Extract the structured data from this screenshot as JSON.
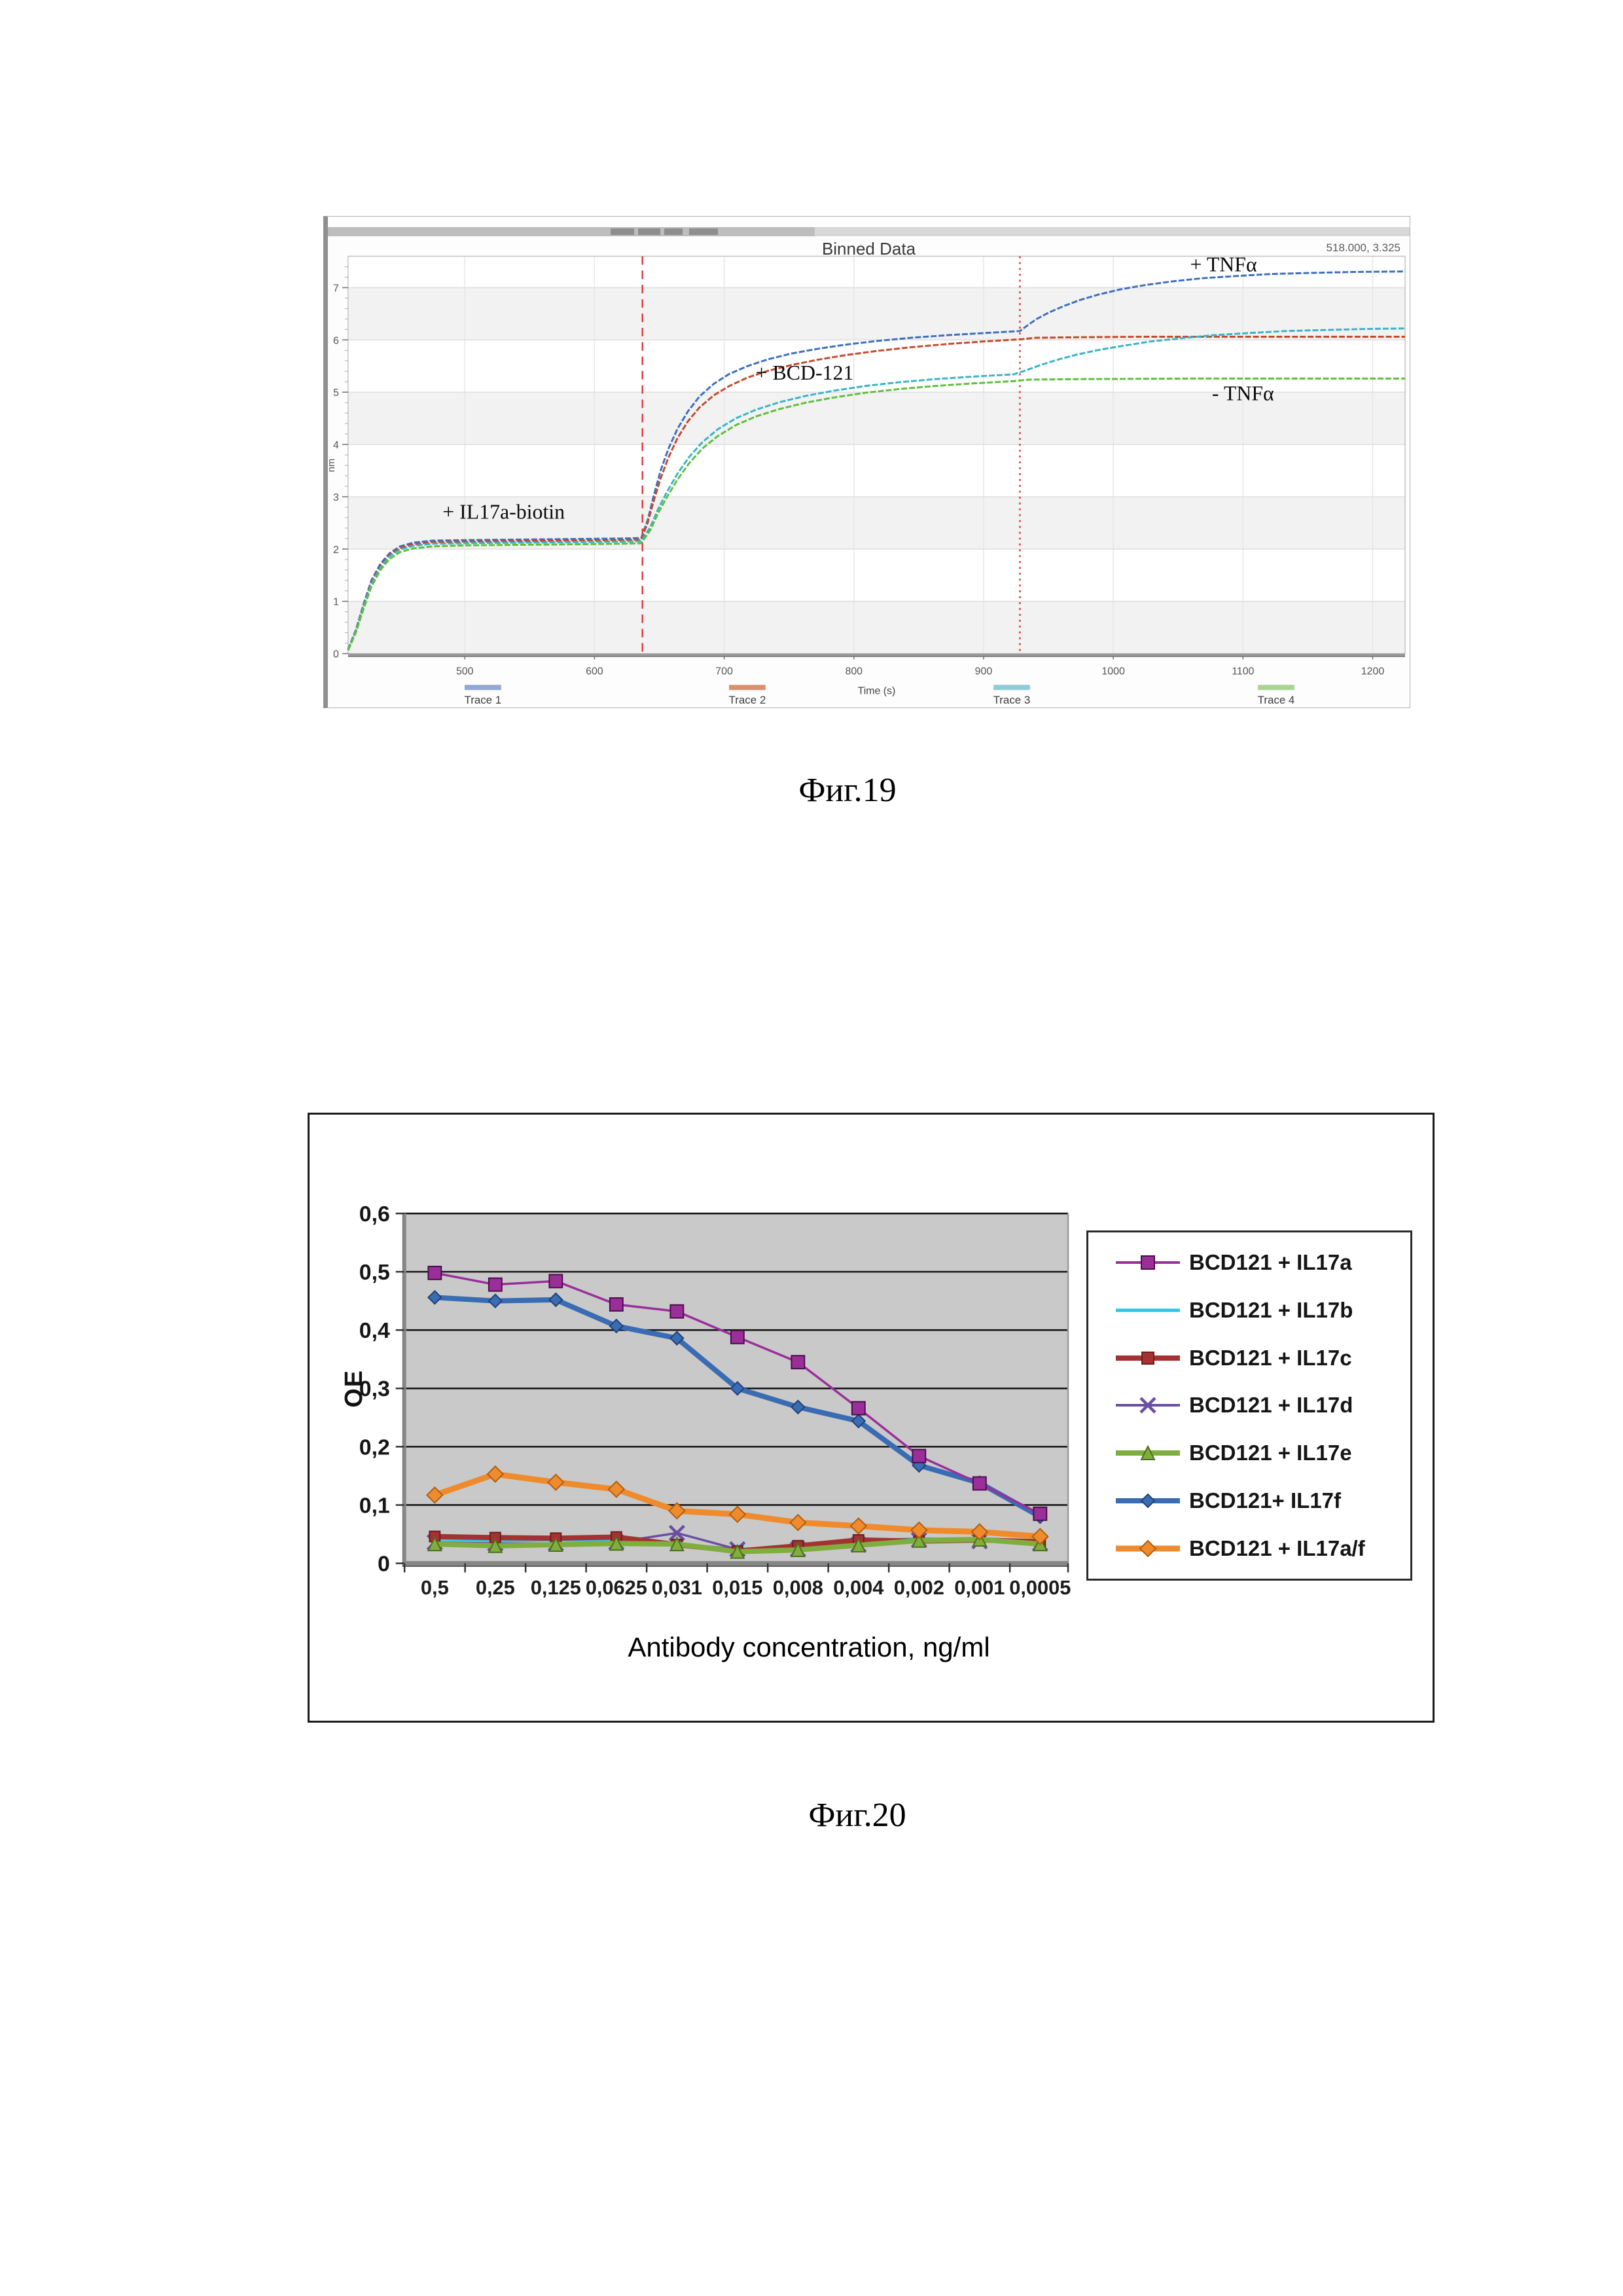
{
  "fig19": {
    "window_title": "Binned Data",
    "coords_readout": "518.000, 3.325",
    "caption": "Фиг.19"
  },
  "fig20": {
    "caption": "Фиг.20"
  },
  "chart_data": [
    {
      "id": "fig19",
      "type": "line",
      "title": "Binned Data",
      "xlabel": "Time (s)",
      "ylabel": "nm",
      "xlim": [
        410,
        1225
      ],
      "ylim": [
        0,
        7.6
      ],
      "xticks": [
        500,
        600,
        700,
        800,
        900,
        1000,
        1100,
        1200
      ],
      "yticks": [
        0,
        1,
        2,
        3,
        4,
        5,
        6,
        7
      ],
      "grid": true,
      "legend_position": "bottom",
      "phase_lines": [
        {
          "x": 637,
          "style": "dashed",
          "color": "#e03c3c"
        },
        {
          "x": 928,
          "style": "dotted",
          "color": "#e03c3c"
        }
      ],
      "annotations": [
        {
          "text": "+ IL17a-biotin",
          "x": 530,
          "y": 2.72
        },
        {
          "text": "+ BCD-121",
          "x": 762,
          "y": 5.38
        },
        {
          "text": "+ TNFα",
          "x": 1085,
          "y": 7.45
        },
        {
          "text": "- TNFα",
          "x": 1100,
          "y": 4.98
        }
      ],
      "series": [
        {
          "name": "Trace 1",
          "color": "#3f6fbe",
          "legend_color": "#92a9d4",
          "points": [
            [
              410,
              0.08
            ],
            [
              416,
              0.45
            ],
            [
              422,
              0.95
            ],
            [
              428,
              1.4
            ],
            [
              435,
              1.72
            ],
            [
              442,
              1.92
            ],
            [
              450,
              2.05
            ],
            [
              460,
              2.12
            ],
            [
              475,
              2.16
            ],
            [
              500,
              2.17
            ],
            [
              540,
              2.18
            ],
            [
              580,
              2.19
            ],
            [
              620,
              2.2
            ],
            [
              636,
              2.21
            ],
            [
              641,
              2.55
            ],
            [
              646,
              3.05
            ],
            [
              651,
              3.5
            ],
            [
              657,
              3.92
            ],
            [
              664,
              4.3
            ],
            [
              672,
              4.63
            ],
            [
              681,
              4.92
            ],
            [
              692,
              5.16
            ],
            [
              704,
              5.35
            ],
            [
              718,
              5.5
            ],
            [
              734,
              5.63
            ],
            [
              752,
              5.74
            ],
            [
              772,
              5.83
            ],
            [
              794,
              5.91
            ],
            [
              818,
              5.98
            ],
            [
              844,
              6.04
            ],
            [
              872,
              6.09
            ],
            [
              900,
              6.13
            ],
            [
              928,
              6.17
            ],
            [
              934,
              6.28
            ],
            [
              941,
              6.4
            ],
            [
              950,
              6.52
            ],
            [
              961,
              6.64
            ],
            [
              974,
              6.76
            ],
            [
              989,
              6.87
            ],
            [
              1006,
              6.97
            ],
            [
              1025,
              7.05
            ],
            [
              1046,
              7.12
            ],
            [
              1069,
              7.18
            ],
            [
              1094,
              7.22
            ],
            [
              1121,
              7.26
            ],
            [
              1150,
              7.28
            ],
            [
              1185,
              7.3
            ],
            [
              1225,
              7.31
            ]
          ]
        },
        {
          "name": "Trace 2",
          "color": "#c24b2d",
          "legend_color": "#d9926f",
          "points": [
            [
              410,
              0.07
            ],
            [
              416,
              0.43
            ],
            [
              422,
              0.92
            ],
            [
              428,
              1.36
            ],
            [
              435,
              1.68
            ],
            [
              442,
              1.89
            ],
            [
              450,
              2.02
            ],
            [
              460,
              2.09
            ],
            [
              475,
              2.13
            ],
            [
              500,
              2.14
            ],
            [
              540,
              2.15
            ],
            [
              580,
              2.16
            ],
            [
              620,
              2.17
            ],
            [
              636,
              2.18
            ],
            [
              641,
              2.5
            ],
            [
              646,
              2.95
            ],
            [
              651,
              3.35
            ],
            [
              657,
              3.75
            ],
            [
              664,
              4.12
            ],
            [
              672,
              4.44
            ],
            [
              681,
              4.71
            ],
            [
              692,
              4.94
            ],
            [
              704,
              5.12
            ],
            [
              718,
              5.28
            ],
            [
              734,
              5.41
            ],
            [
              752,
              5.52
            ],
            [
              772,
              5.62
            ],
            [
              794,
              5.71
            ],
            [
              818,
              5.79
            ],
            [
              844,
              5.86
            ],
            [
              872,
              5.92
            ],
            [
              900,
              5.97
            ],
            [
              928,
              6.01
            ],
            [
              940,
              6.04
            ],
            [
              970,
              6.05
            ],
            [
              1020,
              6.06
            ],
            [
              1120,
              6.06
            ],
            [
              1225,
              6.06
            ]
          ]
        },
        {
          "name": "Trace 3",
          "color": "#3ab4c8",
          "legend_color": "#8fccd8",
          "points": [
            [
              410,
              0.07
            ],
            [
              416,
              0.42
            ],
            [
              422,
              0.9
            ],
            [
              428,
              1.33
            ],
            [
              435,
              1.65
            ],
            [
              442,
              1.86
            ],
            [
              450,
              1.99
            ],
            [
              460,
              2.06
            ],
            [
              475,
              2.1
            ],
            [
              500,
              2.11
            ],
            [
              540,
              2.12
            ],
            [
              580,
              2.13
            ],
            [
              620,
              2.14
            ],
            [
              636,
              2.15
            ],
            [
              643,
              2.42
            ],
            [
              649,
              2.76
            ],
            [
              656,
              3.1
            ],
            [
              664,
              3.44
            ],
            [
              673,
              3.76
            ],
            [
              683,
              4.04
            ],
            [
              695,
              4.29
            ],
            [
              709,
              4.5
            ],
            [
              725,
              4.67
            ],
            [
              743,
              4.81
            ],
            [
              763,
              4.93
            ],
            [
              785,
              5.03
            ],
            [
              809,
              5.12
            ],
            [
              835,
              5.19
            ],
            [
              863,
              5.25
            ],
            [
              893,
              5.3
            ],
            [
              923,
              5.34
            ],
            [
              933,
              5.42
            ],
            [
              944,
              5.52
            ],
            [
              957,
              5.62
            ],
            [
              972,
              5.72
            ],
            [
              989,
              5.81
            ],
            [
              1008,
              5.89
            ],
            [
              1029,
              5.97
            ],
            [
              1052,
              6.03
            ],
            [
              1077,
              6.09
            ],
            [
              1104,
              6.13
            ],
            [
              1133,
              6.17
            ],
            [
              1164,
              6.19
            ],
            [
              1195,
              6.21
            ],
            [
              1225,
              6.22
            ]
          ]
        },
        {
          "name": "Trace 4",
          "color": "#5fbf3c",
          "legend_color": "#a8d494",
          "points": [
            [
              410,
              0.06
            ],
            [
              416,
              0.4
            ],
            [
              422,
              0.86
            ],
            [
              428,
              1.28
            ],
            [
              435,
              1.6
            ],
            [
              442,
              1.81
            ],
            [
              450,
              1.94
            ],
            [
              460,
              2.01
            ],
            [
              475,
              2.05
            ],
            [
              500,
              2.07
            ],
            [
              540,
              2.08
            ],
            [
              580,
              2.09
            ],
            [
              620,
              2.1
            ],
            [
              636,
              2.11
            ],
            [
              643,
              2.36
            ],
            [
              649,
              2.68
            ],
            [
              656,
              3.0
            ],
            [
              664,
              3.33
            ],
            [
              673,
              3.64
            ],
            [
              683,
              3.92
            ],
            [
              695,
              4.16
            ],
            [
              709,
              4.37
            ],
            [
              725,
              4.54
            ],
            [
              743,
              4.68
            ],
            [
              763,
              4.8
            ],
            [
              785,
              4.9
            ],
            [
              809,
              4.99
            ],
            [
              835,
              5.06
            ],
            [
              863,
              5.12
            ],
            [
              893,
              5.17
            ],
            [
              923,
              5.21
            ],
            [
              935,
              5.24
            ],
            [
              975,
              5.25
            ],
            [
              1060,
              5.26
            ],
            [
              1225,
              5.26
            ]
          ]
        }
      ]
    },
    {
      "id": "fig20",
      "type": "line",
      "title": "",
      "xlabel": "Antibody concentration, ng/ml",
      "ylabel": "OE",
      "categories": [
        "0,5",
        "0,25",
        "0,125",
        "0,0625",
        "0,031",
        "0,015",
        "0,008",
        "0,004",
        "0,002",
        "0,001",
        "0,0005"
      ],
      "ylim": [
        0,
        0.6
      ],
      "yticks": [
        0,
        0.1,
        0.2,
        0.3,
        0.4,
        0.5,
        0.6
      ],
      "ytick_labels": [
        "0",
        "0,1",
        "0,2",
        "0,3",
        "0,4",
        "0,5",
        "0,6"
      ],
      "grid": true,
      "legend_position": "right",
      "plot_bg": "#c9c9c9",
      "series": [
        {
          "name": "BCD121 + IL17a",
          "color": "#9a2f9a",
          "marker": "square",
          "marker_edge": "#4c0d4c",
          "marker_size": 20,
          "line_width": 3.5,
          "values": [
            0.498,
            0.478,
            0.484,
            0.444,
            0.432,
            0.388,
            0.345,
            0.266,
            0.184,
            0.137,
            0.085
          ]
        },
        {
          "name": "BCD121 + IL17b",
          "color": "#29c5e6",
          "marker": "dash",
          "marker_edge": "#29c5e6",
          "marker_size": 0,
          "line_width": 5,
          "values": [
            0.042,
            0.039,
            0.04,
            0.04,
            0.032,
            0.024,
            0.026,
            0.038,
            0.042,
            0.04,
            0.038
          ]
        },
        {
          "name": "BCD121 + IL17c",
          "color": "#a53232",
          "marker": "square",
          "marker_edge": "#6e1d1d",
          "marker_size": 16,
          "line_width": 8,
          "values": [
            0.046,
            0.044,
            0.043,
            0.045,
            0.032,
            0.021,
            0.03,
            0.04,
            0.038,
            0.04,
            0.037
          ]
        },
        {
          "name": "BCD121 + IL17d",
          "color": "#6a4ea3",
          "marker": "x",
          "marker_edge": "#6a4ea3",
          "marker_size": 22,
          "line_width": 3.5,
          "values": [
            0.036,
            0.034,
            0.034,
            0.036,
            0.052,
            0.024,
            0.024,
            0.032,
            0.04,
            0.038,
            0.034
          ]
        },
        {
          "name": "BCD121 + IL17e",
          "color": "#7fae3e",
          "marker": "triangle",
          "marker_edge": "#4e6e20",
          "marker_size": 20,
          "line_width": 8,
          "values": [
            0.033,
            0.03,
            0.032,
            0.034,
            0.033,
            0.02,
            0.023,
            0.031,
            0.039,
            0.041,
            0.033
          ]
        },
        {
          "name": "BCD121+ IL17f",
          "color": "#3a6cb4",
          "marker": "diamond",
          "marker_edge": "#1f4177",
          "marker_size": 20,
          "line_width": 8,
          "values": [
            0.456,
            0.45,
            0.452,
            0.407,
            0.386,
            0.3,
            0.268,
            0.244,
            0.168,
            0.138,
            0.08
          ]
        },
        {
          "name": "BCD121 + IL17a/f",
          "color": "#ef8b2c",
          "marker": "diamond",
          "marker_edge": "#b05e10",
          "marker_size": 24,
          "line_width": 9,
          "values": [
            0.117,
            0.153,
            0.139,
            0.127,
            0.09,
            0.084,
            0.07,
            0.064,
            0.057,
            0.054,
            0.046
          ]
        }
      ]
    }
  ]
}
